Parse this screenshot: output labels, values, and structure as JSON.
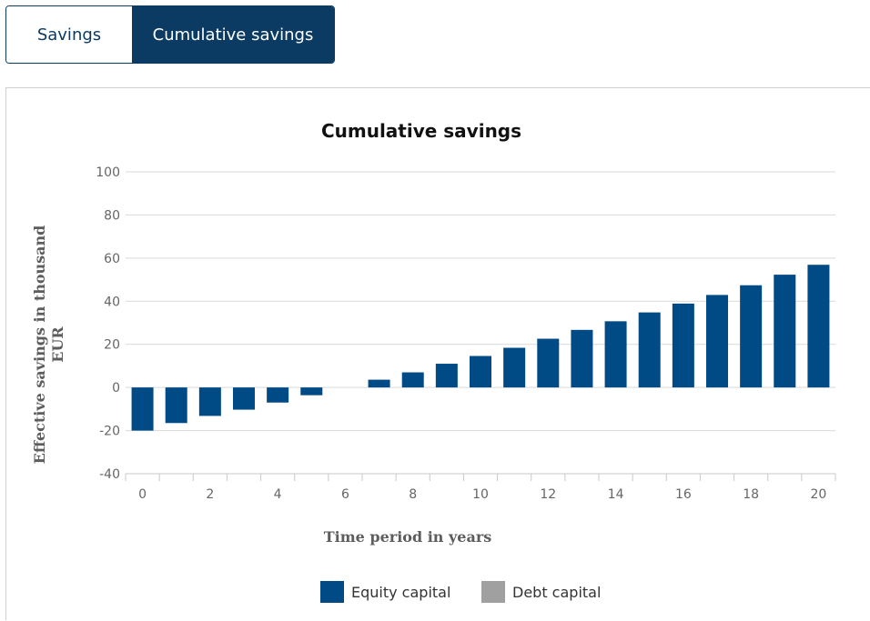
{
  "tabs": [
    {
      "label": "Savings",
      "active": false
    },
    {
      "label": "Cumulative savings",
      "active": true
    }
  ],
  "colors": {
    "accent": "#0b3a63",
    "equity": "#004a86",
    "debt": "#a0a0a0",
    "grid": "#d9d9d9"
  },
  "chart_data": {
    "type": "bar",
    "title": "Cumulative savings",
    "xlabel": "Time period in years",
    "ylabel_lines": [
      "Effective savings in thousand",
      "EUR"
    ],
    "x": [
      0,
      1,
      2,
      3,
      4,
      5,
      6,
      7,
      8,
      9,
      10,
      11,
      12,
      13,
      14,
      15,
      16,
      17,
      18,
      19,
      20
    ],
    "x_ticks": [
      0,
      2,
      4,
      6,
      8,
      10,
      12,
      14,
      16,
      18,
      20
    ],
    "ylim": [
      -40,
      100
    ],
    "y_ticks": [
      100,
      80,
      60,
      40,
      20,
      0,
      -20,
      -40
    ],
    "grid": true,
    "legend": "bottom",
    "series": [
      {
        "name": "Equity capital",
        "color": "#004a86",
        "values": [
          -20,
          -16.5,
          -13.2,
          -10.3,
          -7.0,
          -3.6,
          0,
          3.6,
          7.0,
          11.0,
          14.6,
          18.4,
          22.6,
          26.7,
          30.7,
          34.8,
          38.9,
          42.9,
          47.4,
          52.3,
          56.9
        ]
      },
      {
        "name": "Debt capital",
        "color": "#a0a0a0",
        "values": [
          0,
          0,
          0,
          0,
          0,
          0,
          0,
          0,
          0,
          0,
          0,
          0,
          0,
          0,
          0,
          0,
          0,
          0,
          0,
          0,
          0
        ]
      }
    ]
  }
}
